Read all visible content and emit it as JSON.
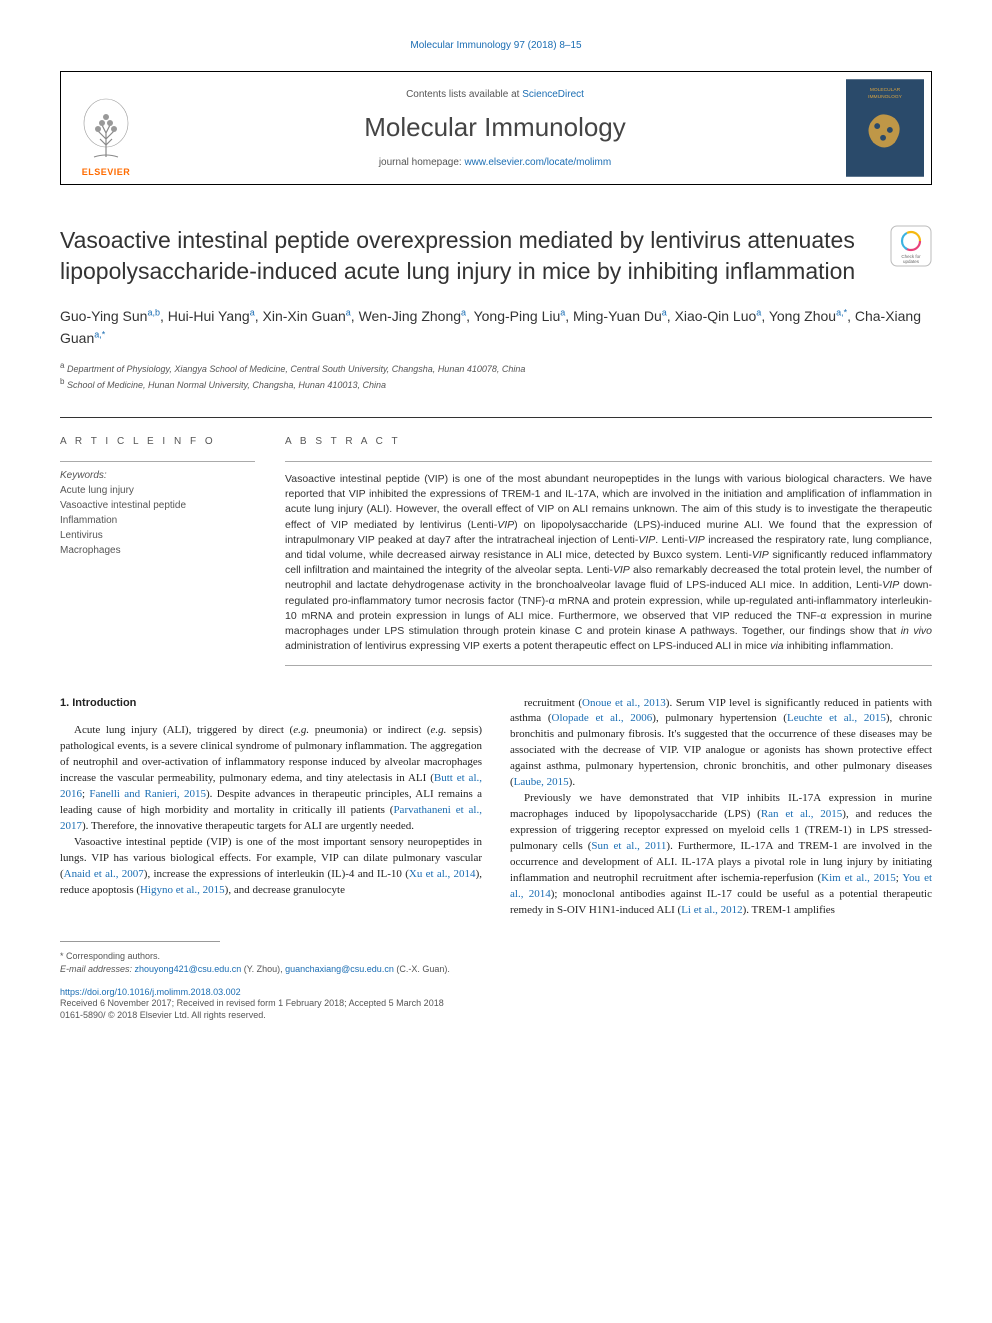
{
  "top_citation": "Molecular Immunology 97 (2018) 8–15",
  "header": {
    "contents_prefix": "Contents lists available at ",
    "contents_link": "ScienceDirect",
    "journal_name": "Molecular Immunology",
    "homepage_prefix": "journal homepage: ",
    "homepage_link": "www.elsevier.com/locate/molimm",
    "publisher_label": "ELSEVIER",
    "cover_title": "MOLECULAR IMMUNOLOGY"
  },
  "crossmark": {
    "label_top": "Check for",
    "label_bottom": "updates"
  },
  "article": {
    "title": "Vasoactive intestinal peptide overexpression mediated by lentivirus attenuates lipopolysaccharide-induced acute lung injury in mice by inhibiting inflammation",
    "authors_html": "Guo-Ying Sun<sup>a,b</sup>, Hui-Hui Yang<sup>a</sup>, Xin-Xin Guan<sup>a</sup>, Wen-Jing Zhong<sup>a</sup>, Yong-Ping Liu<sup>a</sup>, Ming-Yuan Du<sup>a</sup>, Xiao-Qin Luo<sup>a</sup>, Yong Zhou<sup>a,*</sup>, Cha-Xiang Guan<sup>a,*</sup>",
    "affiliations": [
      {
        "sup": "a",
        "text": "Department of Physiology, Xiangya School of Medicine, Central South University, Changsha, Hunan 410078, China"
      },
      {
        "sup": "b",
        "text": "School of Medicine, Hunan Normal University, Changsha, Hunan 410013, China"
      }
    ]
  },
  "article_info": {
    "header": "A R T I C L E  I N F O",
    "keywords_label": "Keywords:",
    "keywords": [
      "Acute lung injury",
      "Vasoactive intestinal peptide",
      "Inflammation",
      "Lentivirus",
      "Macrophages"
    ]
  },
  "abstract": {
    "header": "A B S T R A C T",
    "text": "Vasoactive intestinal peptide (VIP) is one of the most abundant neuropeptides in the lungs with various biological characters. We have reported that VIP inhibited the expressions of TREM-1 and IL-17A, which are involved in the initiation and amplification of inflammation in acute lung injury (ALI). However, the overall effect of VIP on ALI remains unknown. The aim of this study is to investigate the therapeutic effect of VIP mediated by lentivirus (Lenti-VIP) on lipopolysaccharide (LPS)-induced murine ALI. We found that the expression of intrapulmonary VIP peaked at day7 after the intratracheal injection of Lenti-VIP. Lenti-VIP increased the respiratory rate, lung compliance, and tidal volume, while decreased airway resistance in ALI mice, detected by Buxco system. Lenti-VIP significantly reduced inflammatory cell infiltration and maintained the integrity of the alveolar septa. Lenti-VIP also remarkably decreased the total protein level, the number of neutrophil and lactate dehydrogenase activity in the bronchoalveolar lavage fluid of LPS-induced ALI mice. In addition, Lenti-VIP down-regulated pro-inflammatory tumor necrosis factor (TNF)-α mRNA and protein expression, while up-regulated anti-inflammatory interleukin-10 mRNA and protein expression in lungs of ALI mice. Furthermore, we observed that VIP reduced the TNF-α expression in murine macrophages under LPS stimulation through protein kinase C and protein kinase A pathways. Together, our findings show that in vivo administration of lentivirus expressing VIP exerts a potent therapeutic effect on LPS-induced ALI in mice via inhibiting inflammation."
  },
  "body": {
    "section_number": "1.",
    "section_title": "Introduction",
    "col1": [
      "Acute lung injury (ALI), triggered by direct (e.g. pneumonia) or indirect (e.g. sepsis) pathological events, is a severe clinical syndrome of pulmonary inflammation. The aggregation of neutrophil and over-activation of inflammatory response induced by alveolar macrophages increase the vascular permeability, pulmonary edema, and tiny atelectasis in ALI (Butt et al., 2016; Fanelli and Ranieri, 2015). Despite advances in therapeutic principles, ALI remains a leading cause of high morbidity and mortality in critically ill patients (Parvathaneni et al., 2017). Therefore, the innovative therapeutic targets for ALI are urgently needed.",
      "Vasoactive intestinal peptide (VIP) is one of the most important sensory neuropeptides in lungs. VIP has various biological effects. For example, VIP can dilate pulmonary vascular (Anaid et al., 2007), increase the expressions of interleukin (IL)-4 and IL-10 (Xu et al., 2014), reduce apoptosis (Higyno et al., 2015), and decrease granulocyte"
    ],
    "col2": [
      "recruitment (Onoue et al., 2013). Serum VIP level is significantly reduced in patients with asthma (Olopade et al., 2006), pulmonary hypertension (Leuchte et al., 2015), chronic bronchitis and pulmonary fibrosis. It's suggested that the occurrence of these diseases may be associated with the decrease of VIP. VIP analogue or agonists has shown protective effect against asthma, pulmonary hypertension, chronic bronchitis, and other pulmonary diseases (Laube, 2015).",
      "Previously we have demonstrated that VIP inhibits IL-17A expression in murine macrophages induced by lipopolysaccharide (LPS) (Ran et al., 2015), and reduces the expression of triggering receptor expressed on myeloid cells 1 (TREM-1) in LPS stressed-pulmonary cells (Sun et al., 2011). Furthermore, IL-17A and TREM-1 are involved in the occurrence and development of ALI. IL-17A plays a pivotal role in lung injury by initiating inflammation and neutrophil recruitment after ischemia-reperfusion (Kim et al., 2015; You et al., 2014); monoclonal antibodies against IL-17 could be useful as a potential therapeutic remedy in S-OIV H1N1-induced ALI (Li et al., 2012). TREM-1 amplifies"
    ]
  },
  "refs": {
    "butt2016": "Butt et al., 2016",
    "fanelli2015": "Fanelli and Ranieri, 2015",
    "parvathaneni2017": "Parvathaneni et al., 2017",
    "anaid2007": "Anaid et al., 2007",
    "xu2014": "Xu et al., 2014",
    "higyno2015": "Higyno et al., 2015",
    "onoue2013": "Onoue et al., 2013",
    "olopade2006": "Olopade et al., 2006",
    "leuchte2015": "Leuchte et al., 2015",
    "laube2015": "Laube, 2015",
    "ran2015": "Ran et al., 2015",
    "sun2011": "Sun et al., 2011",
    "kim2015": "Kim et al., 2015",
    "you2014": "You et al., 2014",
    "li2012": "Li et al., 2012"
  },
  "footer": {
    "corresponding": "* Corresponding authors.",
    "email_label": "E-mail addresses: ",
    "email1": "zhouyong421@csu.edu.cn",
    "email1_name": " (Y. Zhou), ",
    "email2": "guanchaxiang@csu.edu.cn",
    "email2_name": " (C.-X. Guan).",
    "doi": "https://doi.org/10.1016/j.molimm.2018.03.002",
    "received": "Received 6 November 2017; Received in revised form 1 February 2018; Accepted 5 March 2018",
    "copyright": "0161-5890/ © 2018 Elsevier Ltd. All rights reserved."
  },
  "colors": {
    "link": "#1a6db3",
    "elsevier_orange": "#ff6b00",
    "text": "#222222",
    "muted": "#555555",
    "cover_bg": "#2a4a6a",
    "cover_accent": "#d9a441"
  },
  "typography": {
    "title_fontsize": 23,
    "journal_fontsize": 26,
    "body_fontsize": 11,
    "abstract_fontsize": 10.5,
    "small_fontsize": 9
  }
}
